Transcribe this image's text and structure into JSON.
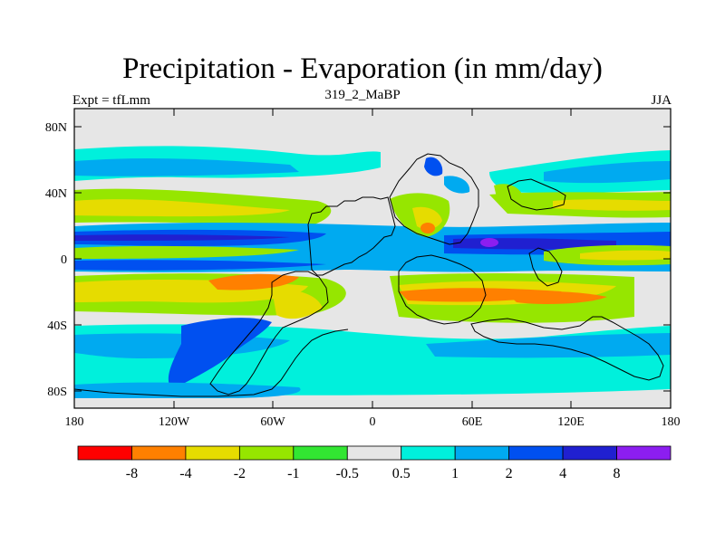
{
  "title": "Precipitation - Evaporation (in mm/day)",
  "left_label": "Expt = tfLmm",
  "center_label": "319_2_MaBP",
  "right_label": "JJA",
  "lat_ticks": [
    "80N",
    "40N",
    "0",
    "40S",
    "80S"
  ],
  "lon_ticks": [
    "180",
    "120W",
    "60W",
    "0",
    "60E",
    "120E",
    "180"
  ],
  "colorbar": {
    "colors": [
      "#ff0000",
      "#ff8000",
      "#e6dc00",
      "#96e600",
      "#32e632",
      "#e6e6e6",
      "#00f0dc",
      "#00aaf0",
      "#0050f0",
      "#2020d0",
      "#8c1ef0"
    ],
    "labels": [
      "-8",
      "-4",
      "-2",
      "-1",
      "-0.5",
      "0.5",
      "1",
      "2",
      "4",
      "8"
    ]
  },
  "chart_data": {
    "type": "heatmap",
    "variable": "Precipitation - Evaporation",
    "units": "mm/day",
    "season": "JJA",
    "experiment": "tfLmm",
    "case": "319_2_MaBP",
    "lon_range": [
      -180,
      180
    ],
    "lat_range": [
      -90,
      90
    ],
    "levels": [
      -8,
      -4,
      -2,
      -1,
      -0.5,
      0.5,
      1,
      2,
      4,
      8
    ]
  }
}
